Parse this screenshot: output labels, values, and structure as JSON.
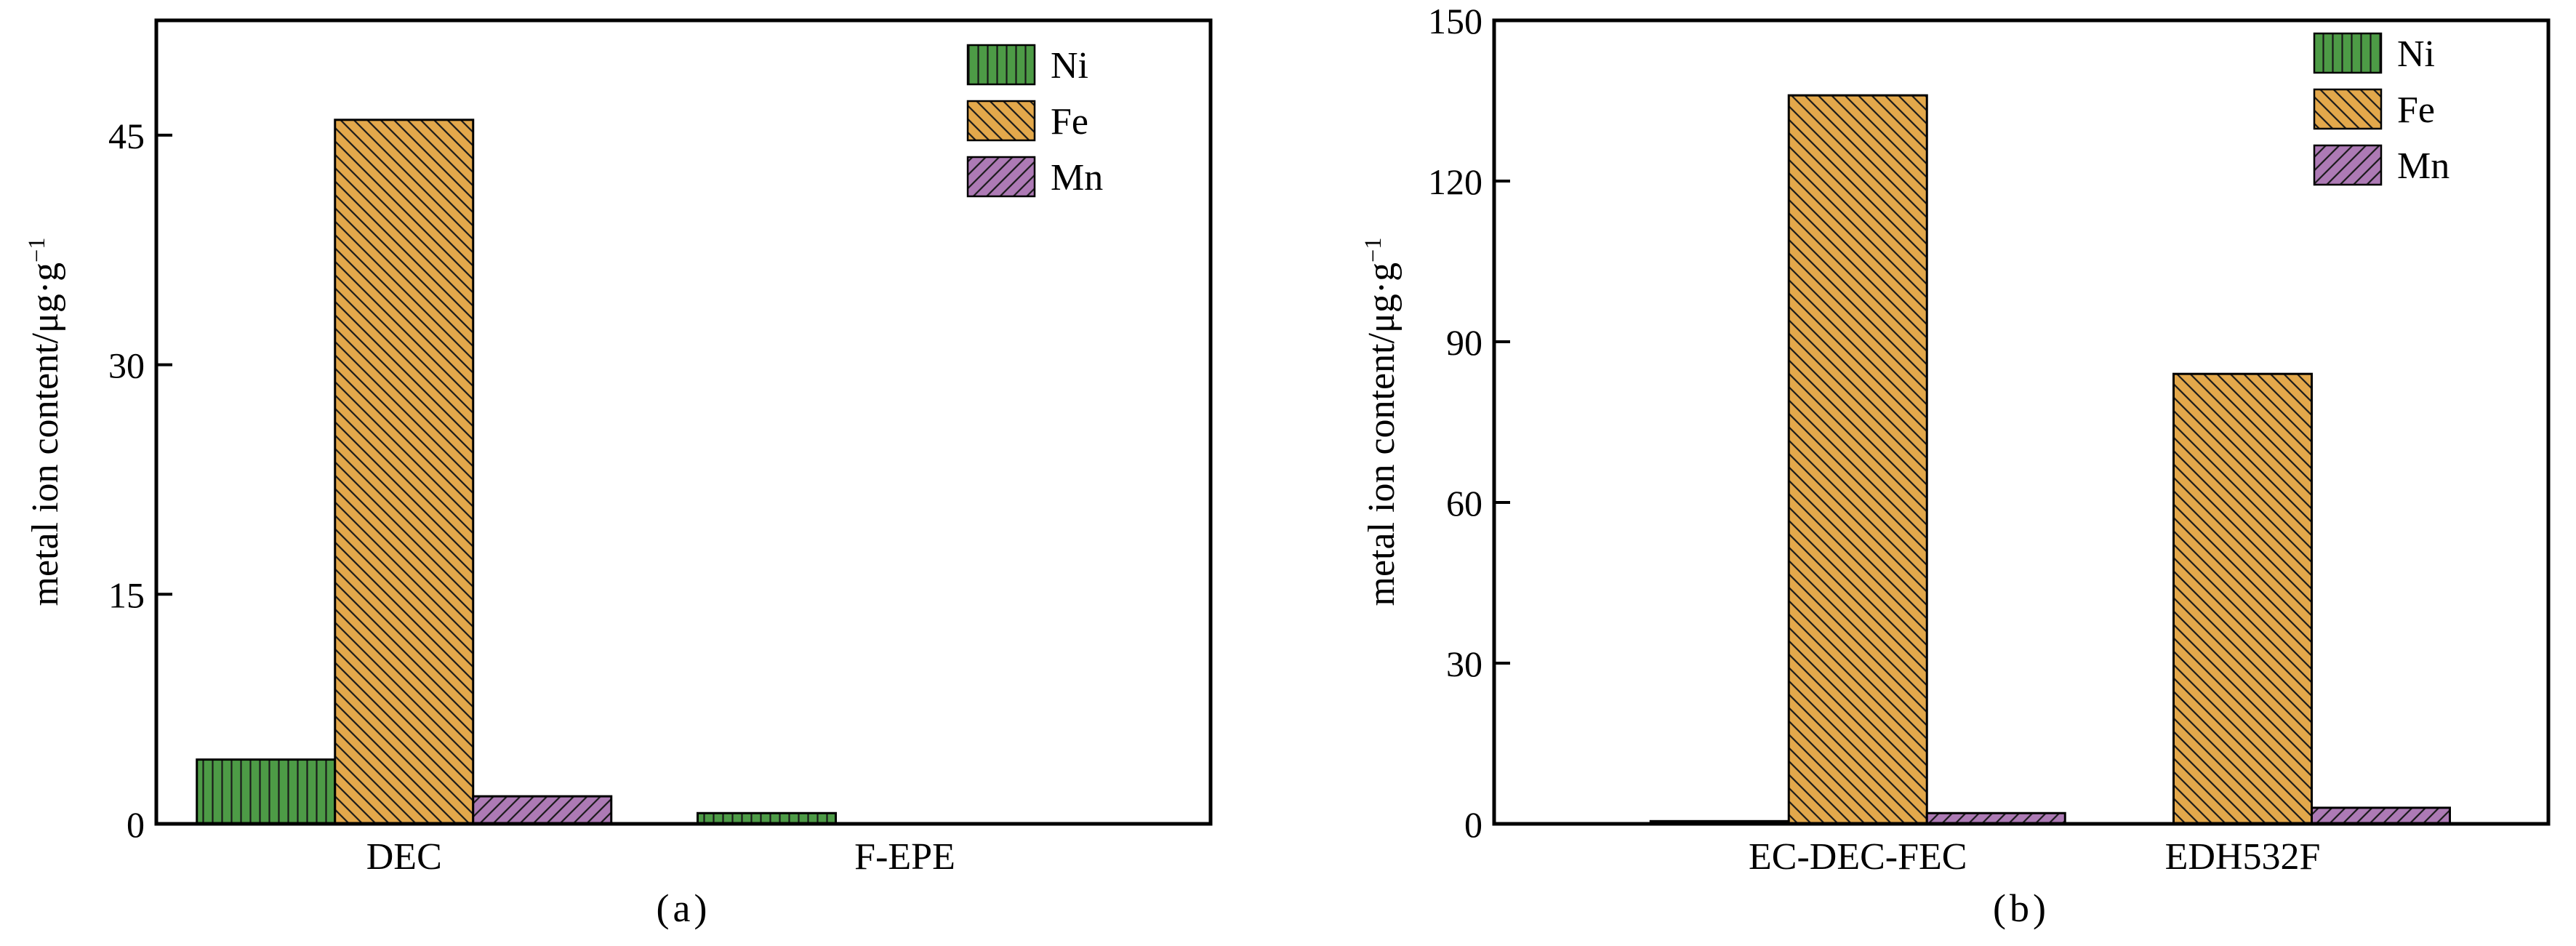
{
  "figure": {
    "background": "#ffffff"
  },
  "style": {
    "axis_color": "#000000",
    "hatch_color": "#1a1a1a",
    "text_color": "#000000"
  },
  "chart_data": [
    {
      "id": "a",
      "type": "bar",
      "caption": "(a)",
      "ylabel": "metal ion content/μg·g⁻¹",
      "ylabel_base": "metal ion content/μg·g",
      "ylabel_sup": "−1",
      "categories": [
        "DEC",
        "F-EPE"
      ],
      "series": [
        {
          "name": "Ni",
          "values": [
            4.2,
            0.7
          ],
          "color": "#4d9b46",
          "hatch": "vertical"
        },
        {
          "name": "Fe",
          "values": [
            46,
            0
          ],
          "color": "#e3a84b",
          "hatch": "diagonal-forward"
        },
        {
          "name": "Mn",
          "values": [
            1.8,
            0
          ],
          "color": "#ad7ab5",
          "hatch": "diagonal-back"
        }
      ],
      "ylim": [
        0,
        52.5
      ],
      "yticks": [
        0,
        15,
        30,
        45
      ],
      "legend": [
        "Ni",
        "Fe",
        "Mn"
      ],
      "legend_position": "top-right-inside",
      "grid": false
    },
    {
      "id": "b",
      "type": "bar",
      "caption": "(b)",
      "ylabel": "metal ion content/μg·g⁻¹",
      "ylabel_base": "metal ion content/μg·g",
      "ylabel_sup": "−1",
      "categories": [
        "EC-DEC-FEC",
        "EDH532F"
      ],
      "series": [
        {
          "name": "Ni",
          "values": [
            0.5,
            0
          ],
          "color": "#4d9b46",
          "hatch": "vertical"
        },
        {
          "name": "Fe",
          "values": [
            136,
            84
          ],
          "color": "#e3a84b",
          "hatch": "diagonal-forward"
        },
        {
          "name": "Mn",
          "values": [
            2,
            3
          ],
          "color": "#ad7ab5",
          "hatch": "diagonal-back"
        }
      ],
      "ylim": [
        0,
        150
      ],
      "yticks": [
        0,
        30,
        60,
        90,
        120,
        150
      ],
      "legend": [
        "Ni",
        "Fe",
        "Mn"
      ],
      "legend_position": "top-right-inside",
      "grid": false
    }
  ]
}
